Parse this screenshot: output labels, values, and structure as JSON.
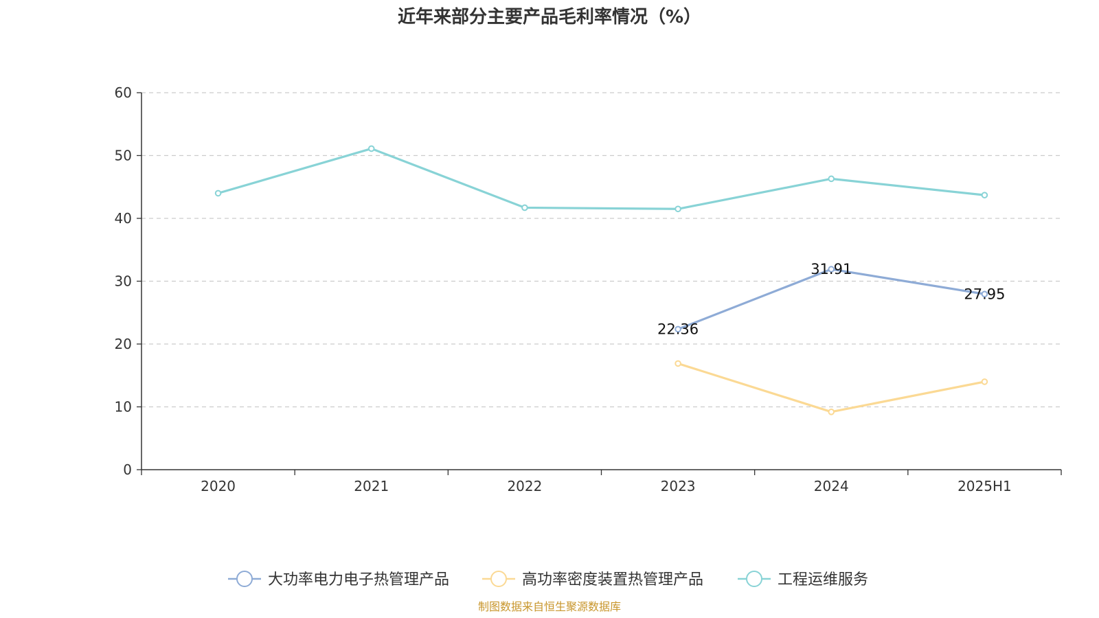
{
  "chart_data": {
    "type": "line",
    "title": "近年来部分主要产品毛利率情况（%）",
    "categories": [
      "2020",
      "2021",
      "2022",
      "2023",
      "2024",
      "2025H1"
    ],
    "ylim": [
      0,
      60
    ],
    "yticks": [
      0,
      10,
      20,
      30,
      40,
      50,
      60
    ],
    "grid": true,
    "legend_position": "bottom",
    "series": [
      {
        "name": "大功率电力电子热管理产品",
        "color": "#8eabd6",
        "values": [
          null,
          null,
          null,
          22.36,
          31.91,
          27.95
        ],
        "labels": [
          "",
          "",
          "",
          "22.36",
          "31.91",
          "27.95"
        ]
      },
      {
        "name": "高功率密度装置热管理产品",
        "color": "#fbd994",
        "values": [
          null,
          null,
          null,
          16.9,
          9.2,
          14.0
        ],
        "labels": [
          "",
          "",
          "",
          "",
          "",
          ""
        ]
      },
      {
        "name": "工程运维服务",
        "color": "#88d3d6",
        "values": [
          44.0,
          51.1,
          41.7,
          41.5,
          46.3,
          43.7
        ],
        "labels": [
          "",
          "",
          "",
          "",
          "",
          ""
        ]
      }
    ]
  },
  "source_note": "制图数据来自恒生聚源数据库"
}
